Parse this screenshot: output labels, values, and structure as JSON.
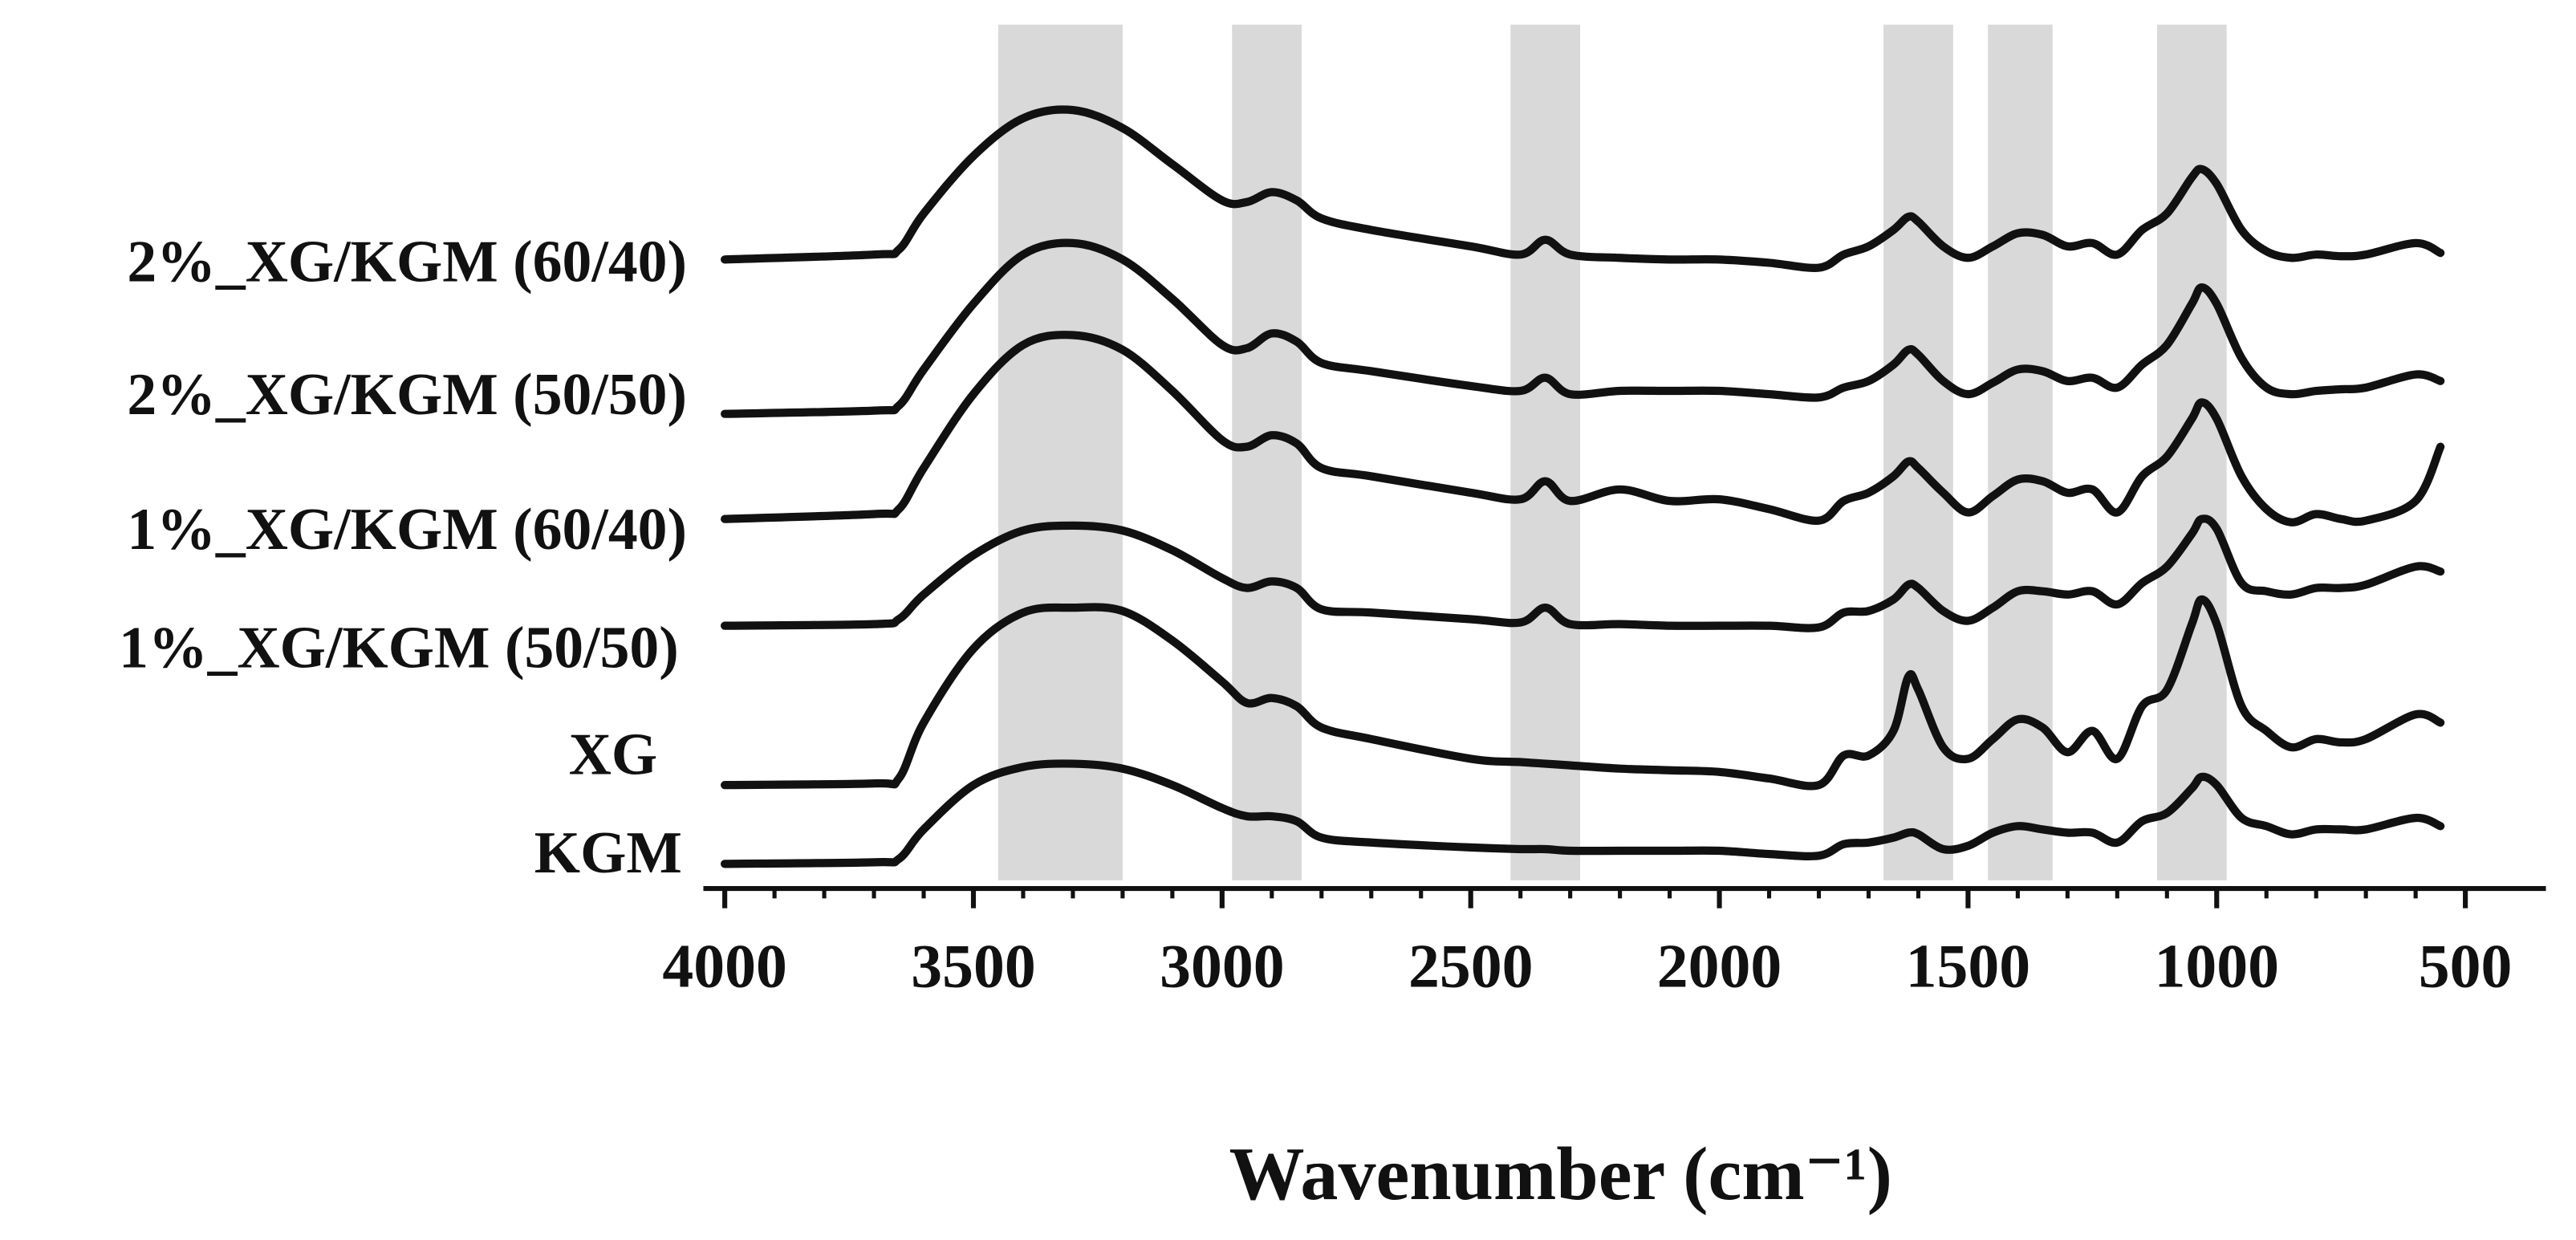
{
  "chart_data": {
    "type": "line",
    "x_label": "Wavenumber (cm⁻¹)",
    "x": [
      4000,
      3700,
      3650,
      3600,
      3500,
      3400,
      3300,
      3200,
      3100,
      3000,
      2950,
      2900,
      2850,
      2800,
      2700,
      2500,
      2400,
      2350,
      2300,
      2200,
      2100,
      2000,
      1900,
      1800,
      1750,
      1700,
      1650,
      1620,
      1600,
      1550,
      1500,
      1450,
      1400,
      1350,
      1300,
      1250,
      1200,
      1150,
      1100,
      1050,
      1030,
      1000,
      950,
      900,
      850,
      800,
      750,
      700,
      600,
      550
    ],
    "series": [
      {
        "name": "2%_XG/KGM (60/40)",
        "color": "#111111",
        "values": [
          383,
          386,
          389,
          411,
          446,
          469,
          474,
          463,
          441,
          419,
          418,
          424,
          419,
          408,
          401,
          391,
          386,
          395,
          386,
          384,
          383,
          383,
          381,
          378,
          386,
          391,
          401,
          409,
          406,
          391,
          384,
          391,
          399,
          398,
          391,
          393,
          386,
          401,
          411,
          433,
          438,
          429,
          401,
          388,
          384,
          386,
          385,
          386,
          393,
          387
        ]
      },
      {
        "name": "2%_XG/KGM (50/50)",
        "color": "#111111",
        "values": [
          289,
          291,
          294,
          316,
          356,
          386,
          393,
          383,
          359,
          331,
          329,
          338,
          333,
          320,
          315,
          306,
          303,
          311,
          301,
          303,
          303,
          303,
          301,
          299,
          305,
          309,
          319,
          328,
          325,
          309,
          301,
          308,
          316,
          315,
          309,
          311,
          305,
          319,
          331,
          356,
          366,
          356,
          323,
          305,
          301,
          303,
          304,
          305,
          313,
          309
        ]
      },
      {
        "name": "1%_XG/KGM (60/40)",
        "color": "#111111",
        "values": [
          225,
          228,
          231,
          256,
          301,
          331,
          337,
          328,
          303,
          273,
          269,
          276,
          271,
          256,
          251,
          241,
          237,
          248,
          236,
          243,
          236,
          237,
          231,
          224,
          236,
          241,
          251,
          260,
          256,
          241,
          229,
          239,
          249,
          248,
          241,
          243,
          229,
          251,
          263,
          286,
          296,
          286,
          251,
          231,
          223,
          228,
          225,
          224,
          236,
          269
        ]
      },
      {
        "name": "1%_XG/KGM (50/50)",
        "color": "#111111",
        "values": [
          160,
          161,
          164,
          179,
          203,
          218,
          221,
          218,
          206,
          189,
          183,
          187,
          183,
          170,
          168,
          164,
          162,
          171,
          161,
          161,
          160,
          160,
          160,
          159,
          168,
          169,
          176,
          185,
          183,
          169,
          163,
          171,
          181,
          181,
          179,
          181,
          173,
          186,
          196,
          216,
          225,
          219,
          186,
          181,
          179,
          183,
          183,
          185,
          196,
          193
        ]
      },
      {
        "name": "XG",
        "color": "#111111",
        "values": [
          63,
          64,
          67,
          101,
          146,
          168,
          171,
          169,
          151,
          126,
          113,
          116,
          111,
          98,
          91,
          79,
          77,
          76,
          75,
          73,
          72,
          71,
          67,
          63,
          81,
          81,
          96,
          129,
          121,
          86,
          79,
          91,
          103,
          98,
          83,
          96,
          79,
          111,
          121,
          161,
          176,
          161,
          111,
          96,
          86,
          91,
          89,
          91,
          106,
          101
        ]
      },
      {
        "name": "KGM",
        "color": "#111111",
        "values": [
          15,
          16,
          18,
          36,
          63,
          74,
          76,
          73,
          63,
          49,
          44,
          44,
          41,
          31,
          28,
          25,
          24,
          24,
          23,
          23,
          23,
          23,
          21,
          20,
          27,
          28,
          31,
          34,
          33,
          24,
          26,
          34,
          38,
          36,
          34,
          34,
          28,
          41,
          46,
          61,
          68,
          63,
          43,
          38,
          33,
          36,
          36,
          36,
          43,
          38
        ]
      }
    ],
    "bands": [
      [
        3450,
        3200
      ],
      [
        2980,
        2840
      ],
      [
        2420,
        2280
      ],
      [
        1670,
        1530
      ],
      [
        1460,
        1330
      ],
      [
        1120,
        980
      ]
    ],
    "band_color": "#d9d9d9",
    "xlim": [
      4043,
      338
    ],
    "ylim": [
      0,
      530
    ],
    "xticks": [
      4000,
      3500,
      3000,
      2500,
      2000,
      1500,
      1000,
      500
    ],
    "xminorticks": [
      4000,
      3900,
      3800,
      3700,
      3600,
      3500,
      3400,
      3300,
      3200,
      3100,
      3000,
      2900,
      2800,
      2700,
      2600,
      2500,
      2400,
      2300,
      2200,
      2100,
      2000,
      1900,
      1800,
      1700,
      1600,
      1500,
      1400,
      1300,
      1200,
      1100,
      1000,
      900,
      800,
      700,
      600,
      500
    ]
  }
}
